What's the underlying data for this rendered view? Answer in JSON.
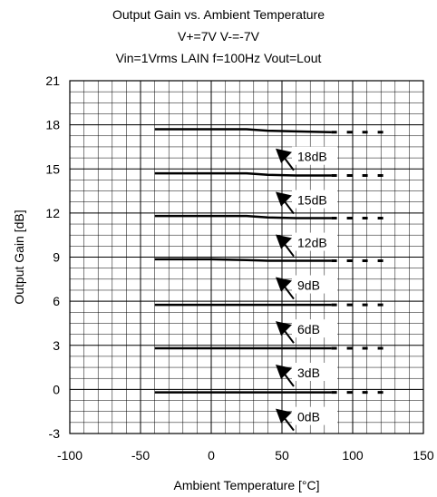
{
  "chart_data": {
    "type": "line",
    "title_lines": [
      "Output Gain vs. Ambient Temperature",
      "V+=7V V-=-7V",
      "Vin=1Vrms LAIN f=100Hz Vout=Lout"
    ],
    "xlabel": "Ambient Temperature [°C]",
    "ylabel": "Output Gain [dB]",
    "xlim": [
      -100,
      150
    ],
    "ylim": [
      -3,
      21
    ],
    "x_ticks": [
      "-100",
      "-50",
      "0",
      "50",
      "100",
      "150"
    ],
    "y_ticks": [
      "21",
      "18",
      "15",
      "12",
      "9",
      "6",
      "3",
      "0",
      "-3"
    ],
    "grid": true,
    "series": [
      {
        "name": "18dB",
        "x": [
          -40,
          0,
          25,
          40,
          60,
          85
        ],
        "y": [
          17.7,
          17.7,
          17.7,
          17.6,
          17.55,
          17.5
        ]
      },
      {
        "name": "15dB",
        "x": [
          -40,
          0,
          25,
          40,
          60,
          85
        ],
        "y": [
          14.7,
          14.7,
          14.7,
          14.6,
          14.55,
          14.55
        ]
      },
      {
        "name": "12dB",
        "x": [
          -40,
          0,
          25,
          40,
          60,
          85
        ],
        "y": [
          11.8,
          11.8,
          11.8,
          11.7,
          11.65,
          11.65
        ]
      },
      {
        "name": "9dB",
        "x": [
          -40,
          0,
          25,
          40,
          60,
          85
        ],
        "y": [
          8.85,
          8.85,
          8.8,
          8.75,
          8.75,
          8.75
        ]
      },
      {
        "name": "6dB",
        "x": [
          -40,
          0,
          25,
          40,
          60,
          85
        ],
        "y": [
          5.75,
          5.75,
          5.75,
          5.75,
          5.75,
          5.75
        ]
      },
      {
        "name": "3dB",
        "x": [
          -40,
          0,
          25,
          40,
          60,
          85
        ],
        "y": [
          2.8,
          2.8,
          2.8,
          2.8,
          2.8,
          2.8
        ]
      },
      {
        "name": "0dB",
        "x": [
          -40,
          0,
          25,
          40,
          60,
          85
        ],
        "y": [
          -0.2,
          -0.2,
          -0.2,
          -0.2,
          -0.2,
          -0.2
        ]
      }
    ],
    "dashed_extension_x": [
      85,
      125
    ],
    "annotations": [
      "18dB",
      "15dB",
      "12dB",
      "9dB",
      "6dB",
      "3dB",
      "0dB"
    ]
  }
}
